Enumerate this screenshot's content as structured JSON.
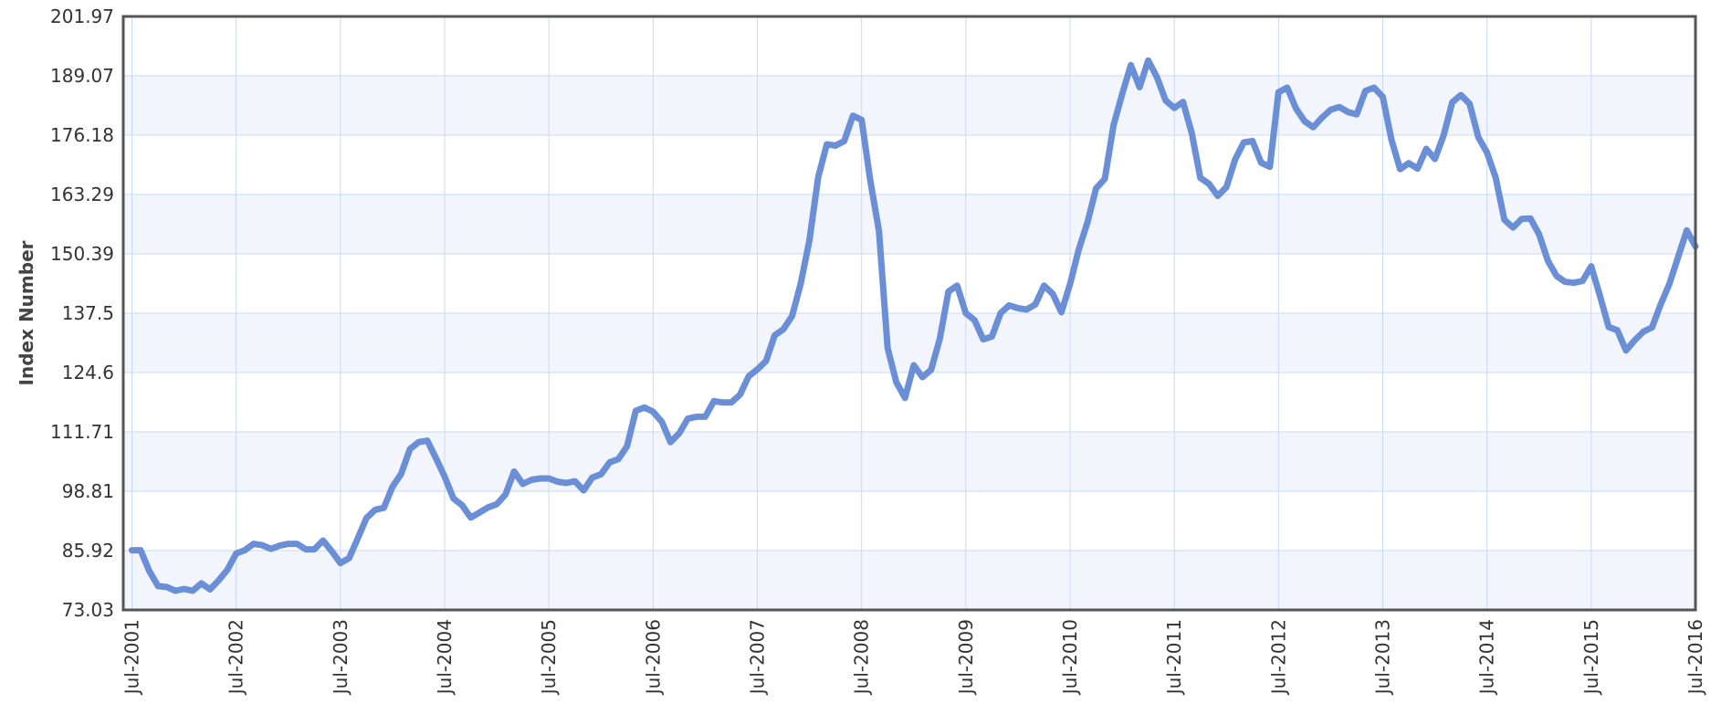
{
  "chart_data": {
    "type": "line",
    "title": "",
    "xlabel": "",
    "ylabel": "Index Number",
    "ylim": [
      73.03,
      201.97
    ],
    "y_ticks": [
      "73.03",
      "85.92",
      "98.81",
      "111.71",
      "124.6",
      "137.5",
      "150.39",
      "163.29",
      "176.18",
      "189.07",
      "201.97"
    ],
    "x_ticks": [
      "Jul-2001",
      "Jul-2002",
      "Jul-2003",
      "Jul-2004",
      "Jul-2005",
      "Jul-2006",
      "Jul-2007",
      "Jul-2008",
      "Jul-2009",
      "Jul-2010",
      "Jul-2011",
      "Jul-2012",
      "Jul-2013",
      "Jul-2014",
      "Jul-2015",
      "Jul-2016"
    ],
    "xlim": [
      "2001-06",
      "2016-07"
    ],
    "grid": true,
    "legend": "none",
    "colors": {
      "line": "#6b8fd6",
      "band": "#f2f5fb",
      "grid": "#c8daf5",
      "frame": "#555555"
    },
    "series": [
      {
        "name": "",
        "x": [
          "2001-07",
          "2001-08",
          "2001-09",
          "2001-10",
          "2001-11",
          "2001-12",
          "2002-01",
          "2002-02",
          "2002-03",
          "2002-04",
          "2002-05",
          "2002-06",
          "2002-07",
          "2002-08",
          "2002-09",
          "2002-10",
          "2002-11",
          "2002-12",
          "2003-01",
          "2003-02",
          "2003-03",
          "2003-04",
          "2003-05",
          "2003-06",
          "2003-07",
          "2003-08",
          "2003-09",
          "2003-10",
          "2003-11",
          "2003-12",
          "2004-01",
          "2004-02",
          "2004-03",
          "2004-04",
          "2004-05",
          "2004-06",
          "2004-07",
          "2004-08",
          "2004-09",
          "2004-10",
          "2004-11",
          "2004-12",
          "2005-01",
          "2005-02",
          "2005-03",
          "2005-04",
          "2005-05",
          "2005-06",
          "2005-07",
          "2005-08",
          "2005-09",
          "2005-10",
          "2005-11",
          "2005-12",
          "2006-01",
          "2006-02",
          "2006-03",
          "2006-04",
          "2006-05",
          "2006-06",
          "2006-07",
          "2006-08",
          "2006-09",
          "2006-10",
          "2006-11",
          "2006-12",
          "2007-01",
          "2007-02",
          "2007-03",
          "2007-04",
          "2007-05",
          "2007-06",
          "2007-07",
          "2007-08",
          "2007-09",
          "2007-10",
          "2007-11",
          "2007-12",
          "2008-01",
          "2008-02",
          "2008-03",
          "2008-04",
          "2008-05",
          "2008-06",
          "2008-07",
          "2008-08",
          "2008-09",
          "2008-10",
          "2008-11",
          "2008-12",
          "2009-01",
          "2009-02",
          "2009-03",
          "2009-04",
          "2009-05",
          "2009-06",
          "2009-07",
          "2009-08",
          "2009-09",
          "2009-10",
          "2009-11",
          "2009-12",
          "2010-01",
          "2010-02",
          "2010-03",
          "2010-04",
          "2010-05",
          "2010-06",
          "2010-07",
          "2010-08",
          "2010-09",
          "2010-10",
          "2010-11",
          "2010-12",
          "2011-01",
          "2011-02",
          "2011-03",
          "2011-04",
          "2011-05",
          "2011-06",
          "2011-07",
          "2011-08",
          "2011-09",
          "2011-10",
          "2011-11",
          "2011-12",
          "2012-01",
          "2012-02",
          "2012-03",
          "2012-04",
          "2012-05",
          "2012-06",
          "2012-07",
          "2012-08",
          "2012-09",
          "2012-10",
          "2012-11",
          "2012-12",
          "2013-01",
          "2013-02",
          "2013-03",
          "2013-04",
          "2013-05",
          "2013-06",
          "2013-07",
          "2013-08",
          "2013-09",
          "2013-10",
          "2013-11",
          "2013-12",
          "2014-01",
          "2014-02",
          "2014-03",
          "2014-04",
          "2014-05",
          "2014-06",
          "2014-07",
          "2014-08",
          "2014-09",
          "2014-10",
          "2014-11",
          "2014-12",
          "2015-01",
          "2015-02",
          "2015-03",
          "2015-04",
          "2015-05",
          "2015-06",
          "2015-07",
          "2015-08",
          "2015-09",
          "2015-10",
          "2015-11",
          "2015-12",
          "2016-01",
          "2016-02",
          "2016-03",
          "2016-04",
          "2016-05",
          "2016-06",
          "2016-07"
        ],
        "y": [
          86.0,
          86.0,
          81.5,
          78.2,
          78.0,
          77.2,
          77.6,
          77.2,
          78.8,
          77.5,
          79.5,
          81.8,
          85.3,
          86.0,
          87.4,
          87.1,
          86.3,
          87.0,
          87.4,
          87.4,
          86.2,
          86.2,
          88.1,
          85.8,
          83.2,
          84.3,
          88.6,
          93.0,
          94.8,
          95.2,
          99.8,
          102.6,
          108.0,
          109.5,
          109.8,
          106.0,
          102.0,
          97.3,
          95.8,
          93.1,
          94.2,
          95.3,
          96.0,
          98.1,
          103.1,
          100.4,
          101.3,
          101.6,
          101.6,
          100.9,
          100.6,
          101.0,
          99.0,
          101.8,
          102.5,
          105.1,
          105.8,
          108.6,
          116.3,
          117.0,
          116.1,
          113.9,
          109.5,
          111.4,
          114.6,
          115.0,
          115.0,
          118.4,
          118.1,
          118.1,
          119.8,
          123.8,
          125.3,
          127.1,
          132.7,
          134.0,
          136.9,
          144.0,
          153.4,
          167.0,
          174.2,
          173.9,
          174.9,
          180.4,
          179.5,
          166.3,
          155.4,
          129.9,
          122.5,
          119.1,
          126.2,
          123.6,
          125.2,
          131.9,
          142.2,
          143.5,
          137.5,
          136.0,
          131.8,
          132.4,
          137.5,
          139.2,
          138.6,
          138.3,
          139.4,
          143.5,
          141.7,
          137.7,
          143.8,
          151.3,
          157.2,
          164.6,
          166.7,
          178.3,
          185.1,
          191.4,
          186.6,
          192.4,
          188.8,
          183.7,
          182.1,
          183.4,
          176.7,
          166.9,
          165.6,
          163.0,
          164.9,
          170.9,
          174.6,
          174.9,
          170.2,
          169.3,
          185.5,
          186.5,
          182.0,
          179.2,
          177.9,
          180.0,
          181.7,
          182.3,
          181.2,
          180.7,
          185.8,
          186.5,
          184.5,
          175.2,
          168.8,
          170.1,
          168.9,
          173.2,
          171.0,
          176.1,
          183.3,
          184.9,
          183.0,
          175.7,
          172.4,
          166.9,
          157.8,
          156.1,
          158.0,
          158.1,
          154.6,
          148.9,
          145.6,
          144.3,
          144.1,
          144.5,
          147.7,
          141.3,
          134.5,
          133.8,
          129.4,
          131.6,
          133.5,
          134.4,
          139.4,
          143.9,
          149.7,
          155.5,
          152.0
        ]
      }
    ]
  }
}
